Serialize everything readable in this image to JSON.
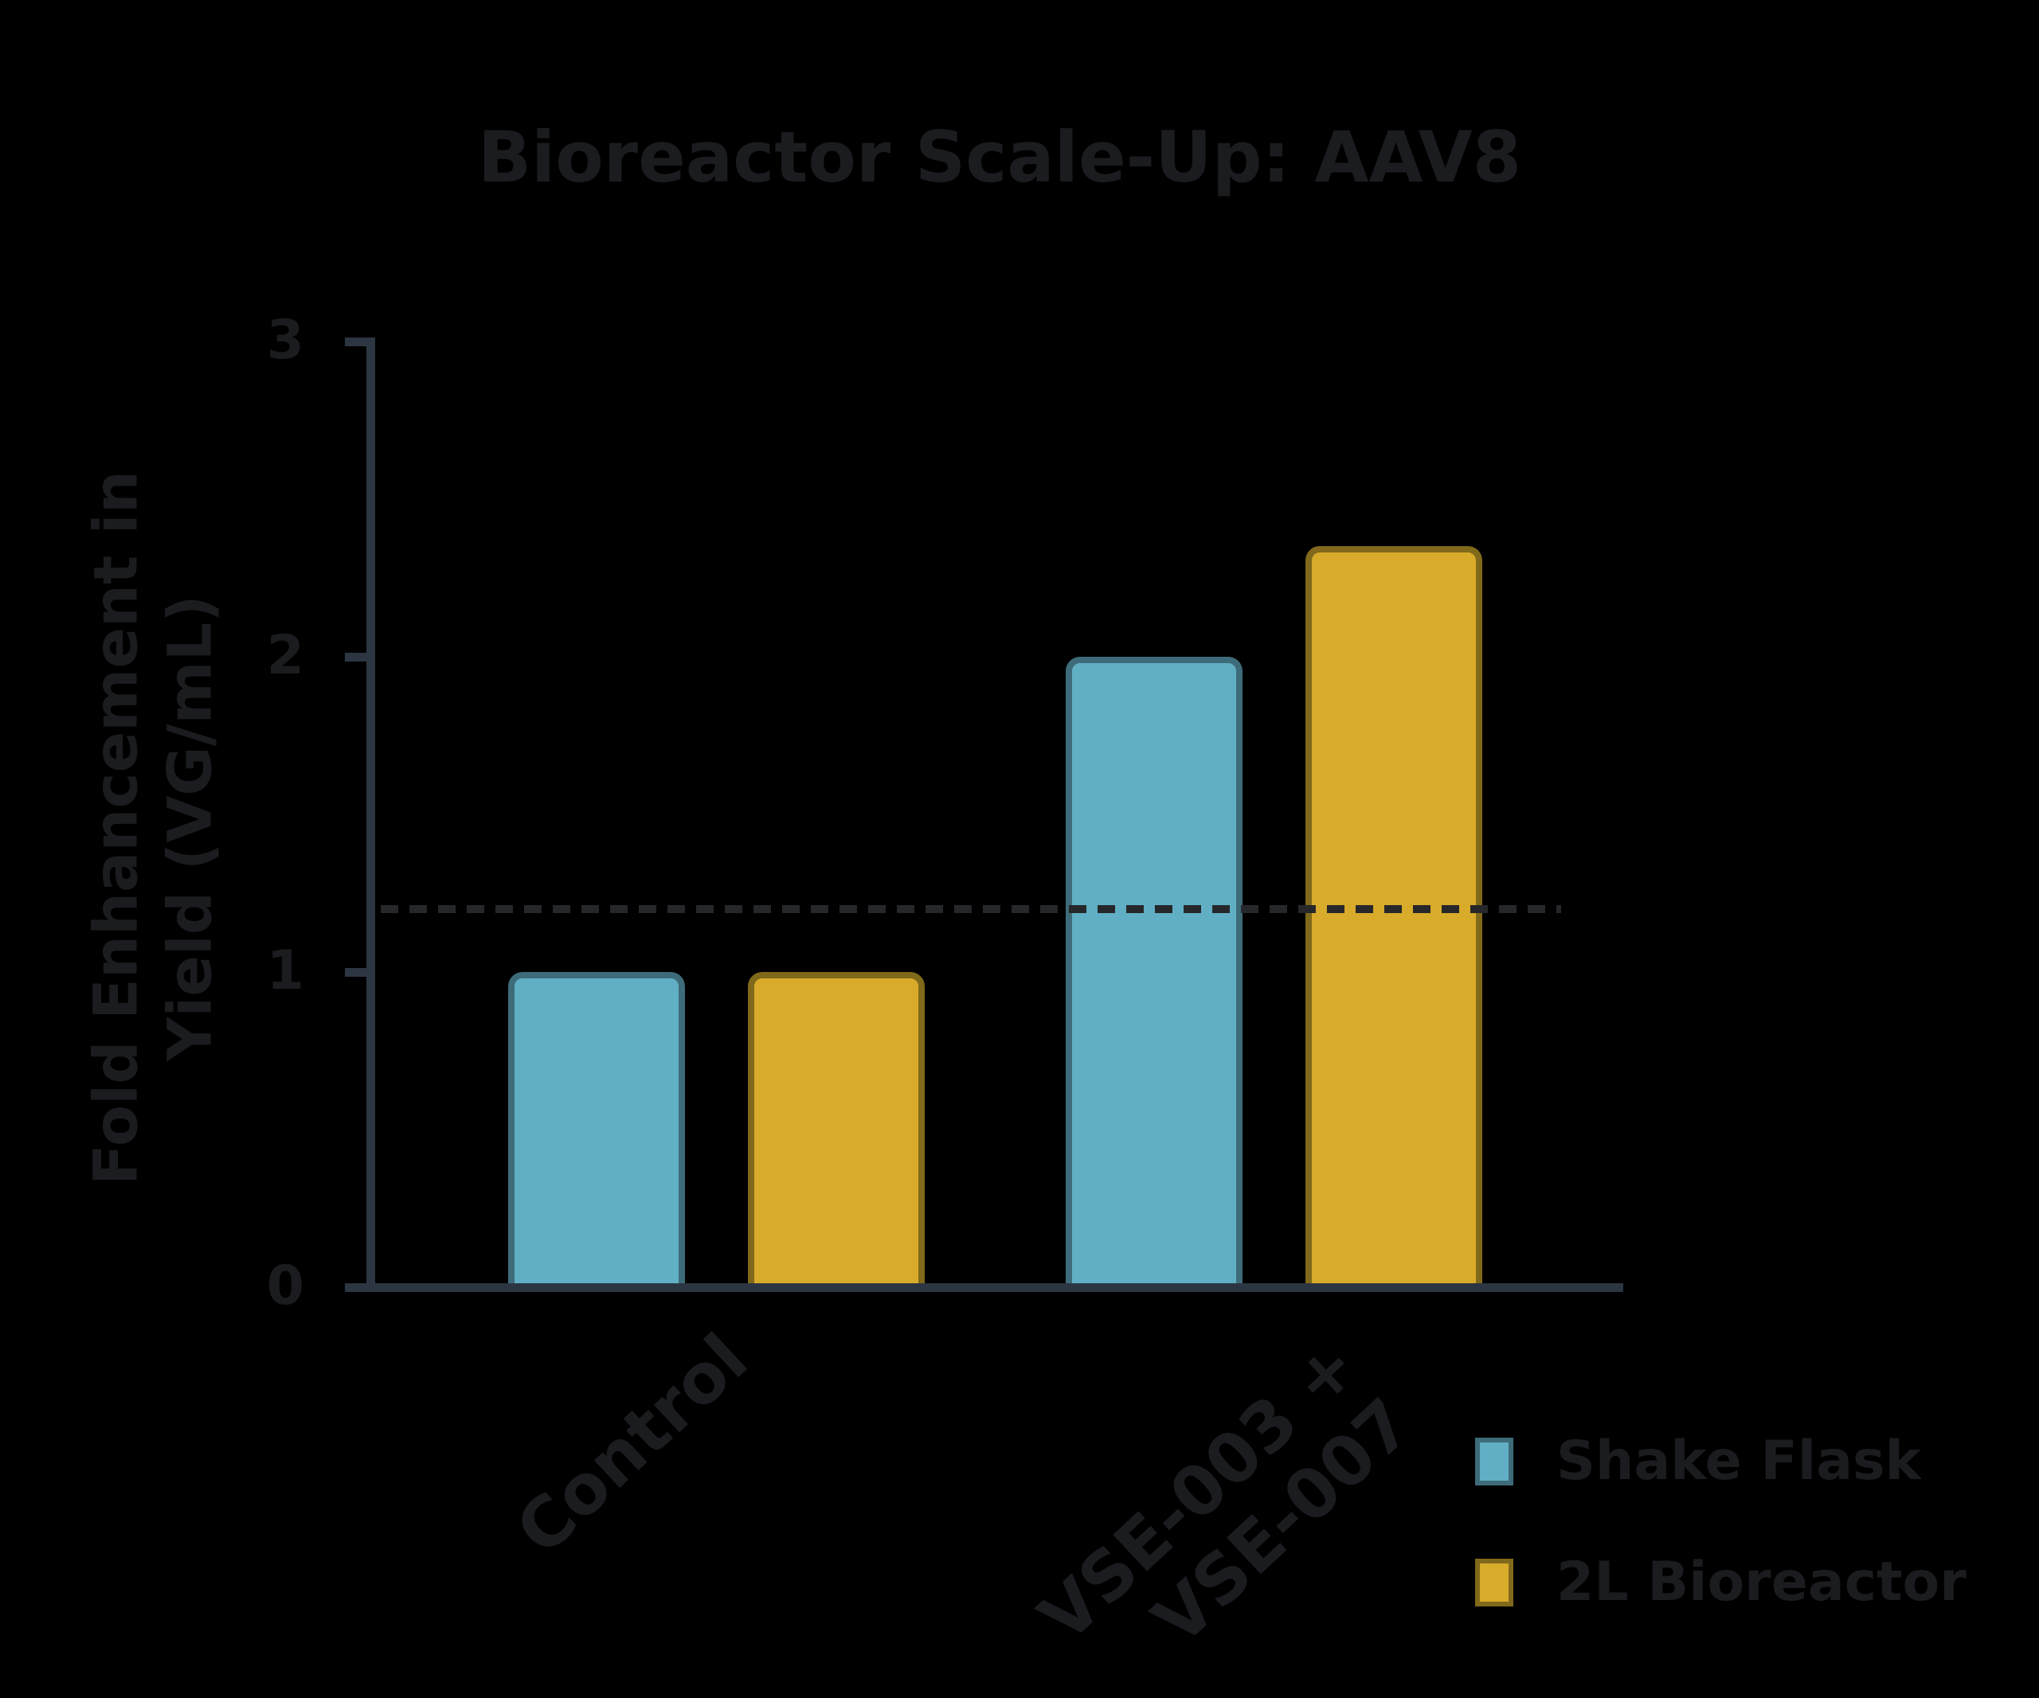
{
  "chart_data": {
    "type": "bar",
    "title": "Bioreactor Scale-Up: AAV8",
    "ylabel": "Fold Enhancement in Yield (VG/mL)",
    "ylabel_lines": [
      "Fold Enhancement in",
      "Yield (VG/mL)"
    ],
    "categories": [
      "Control",
      "VSE-003 + VSE-007"
    ],
    "xtick_labels": [
      [
        "Control"
      ],
      [
        "VSE-003 +",
        "VSE-007"
      ]
    ],
    "series": [
      {
        "name": "Shake Flask",
        "values": [
          1.0,
          2.0
        ],
        "fill": "#61AFC5",
        "edge": "#3E6B79"
      },
      {
        "name": "2L Bioreactor",
        "values": [
          1.0,
          2.35
        ],
        "fill": "#D9AB2A",
        "edge": "#80691A"
      }
    ],
    "ylim": [
      0,
      3
    ],
    "yticks": [
      0,
      1,
      2,
      3
    ],
    "reference_line": {
      "value": 1.2,
      "style": "dashed",
      "color": "#26272A"
    },
    "legend": {
      "position": "lower-right",
      "entries": [
        "Shake Flask",
        "2L Bioreactor"
      ]
    },
    "grid": false,
    "colors": {
      "background": "#000000",
      "axis": "#2C3642",
      "text": "#1B1C1F"
    }
  }
}
